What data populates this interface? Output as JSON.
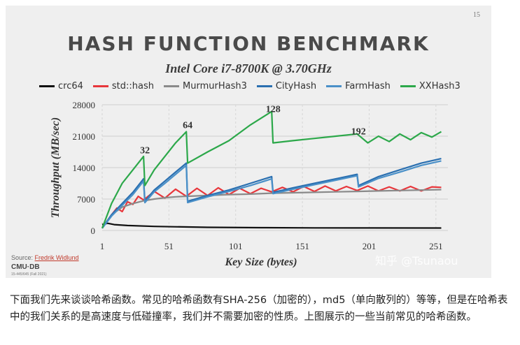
{
  "slide": {
    "number": "15",
    "title": "HASH FUNCTION BENCHMARK",
    "subtitle": "Intel Core i7-8700K @ 3.70GHz",
    "source_label": "Source:",
    "source_link": "Fredrik Widlund",
    "logo": "CMU·DB",
    "course": "15-445/645 (Fall 2021)",
    "watermark": "知乎 @Tsunaou"
  },
  "chart_data": {
    "type": "line",
    "xlabel": "Key Size (bytes)",
    "ylabel": "Throughput (MB/sec)",
    "xlim": [
      1,
      260
    ],
    "ylim": [
      0,
      28000
    ],
    "xticks": [
      1,
      51,
      101,
      151,
      201,
      251
    ],
    "yticks": [
      0,
      7000,
      14000,
      21000,
      28000
    ],
    "grid": true,
    "legend_position": "top",
    "annotations": [
      {
        "text": "32",
        "x": 32,
        "y": 17200
      },
      {
        "text": "64",
        "x": 64,
        "y": 22800
      },
      {
        "text": "128",
        "x": 128,
        "y": 26400
      },
      {
        "text": "192",
        "x": 192,
        "y": 21400
      }
    ],
    "series": [
      {
        "name": "crc64",
        "color": "#111111",
        "x": [
          1,
          5,
          10,
          20,
          40,
          80,
          120,
          160,
          200,
          255
        ],
        "y": [
          1300,
          1600,
          1300,
          1100,
          900,
          700,
          620,
          580,
          560,
          540
        ]
      },
      {
        "name": "std::hash",
        "color": "#e8363b",
        "x": [
          1,
          8,
          12,
          16,
          20,
          24,
          28,
          32,
          40,
          48,
          56,
          64,
          72,
          80,
          88,
          96,
          104,
          112,
          120,
          128,
          136,
          144,
          152,
          160,
          168,
          176,
          184,
          192,
          200,
          208,
          216,
          224,
          232,
          240,
          248,
          255
        ],
        "y": [
          500,
          3500,
          5000,
          4200,
          6400,
          5800,
          7600,
          6800,
          8700,
          7200,
          9200,
          7600,
          9400,
          7800,
          9500,
          8000,
          9400,
          8200,
          9400,
          8600,
          9600,
          8600,
          9800,
          8700,
          9900,
          8800,
          9800,
          8900,
          9900,
          8800,
          9700,
          8800,
          9800,
          8800,
          9700,
          9600
        ]
      },
      {
        "name": "MurmurHash3",
        "color": "#8a8a8a",
        "x": [
          1,
          8,
          16,
          24,
          32,
          40,
          48,
          56,
          64,
          72,
          80,
          96,
          112,
          128,
          144,
          160,
          176,
          192,
          208,
          224,
          240,
          255
        ],
        "y": [
          500,
          3500,
          5200,
          6000,
          6600,
          7000,
          7300,
          7500,
          7600,
          7700,
          7800,
          8000,
          8100,
          8300,
          8400,
          8500,
          8600,
          8700,
          8800,
          8900,
          9000,
          9100
        ]
      },
      {
        "name": "CityHash",
        "color": "#2a6fb0",
        "x": [
          1,
          8,
          16,
          24,
          32,
          33,
          40,
          48,
          56,
          64,
          65,
          80,
          96,
          112,
          128,
          129,
          144,
          160,
          176,
          192,
          193,
          208,
          224,
          240,
          255
        ],
        "y": [
          500,
          3500,
          6000,
          8500,
          11500,
          6500,
          9000,
          11000,
          13000,
          15000,
          6500,
          7800,
          9000,
          10500,
          12000,
          8500,
          9500,
          10500,
          11500,
          12500,
          10000,
          12000,
          13500,
          15000,
          16000
        ]
      },
      {
        "name": "FarmHash",
        "color": "#4a90c8",
        "x": [
          1,
          8,
          16,
          24,
          32,
          33,
          40,
          48,
          56,
          64,
          65,
          80,
          96,
          112,
          128,
          129,
          144,
          160,
          176,
          192,
          193,
          208,
          224,
          240,
          255
        ],
        "y": [
          500,
          3200,
          5600,
          8000,
          11000,
          6200,
          8600,
          10500,
          12500,
          14500,
          6200,
          7500,
          8700,
          10000,
          11500,
          8200,
          9200,
          10200,
          11200,
          12200,
          9700,
          11600,
          13000,
          14500,
          15500
        ]
      },
      {
        "name": "XXHash3",
        "color": "#2ca84a",
        "x": [
          1,
          8,
          16,
          24,
          32,
          33,
          40,
          48,
          56,
          64,
          65,
          80,
          96,
          112,
          128,
          129,
          144,
          160,
          176,
          192,
          200,
          208,
          216,
          224,
          232,
          240,
          248,
          255
        ],
        "y": [
          500,
          6000,
          10500,
          13500,
          16500,
          10000,
          13500,
          16500,
          19500,
          22000,
          15000,
          17500,
          20000,
          23500,
          26500,
          19500,
          20000,
          20500,
          21000,
          21500,
          19500,
          21000,
          19800,
          21500,
          20200,
          21800,
          20800,
          22000
        ]
      }
    ]
  },
  "caption": "下面我们先来谈谈哈希函数。常见的哈希函数有SHA-256（加密的），md5（单向散列的）等等，但是在哈希表中的我们关系的是高速度与低碰撞率，我们并不需要加密的性质。上图展示的一些当前常见的哈希函数。"
}
